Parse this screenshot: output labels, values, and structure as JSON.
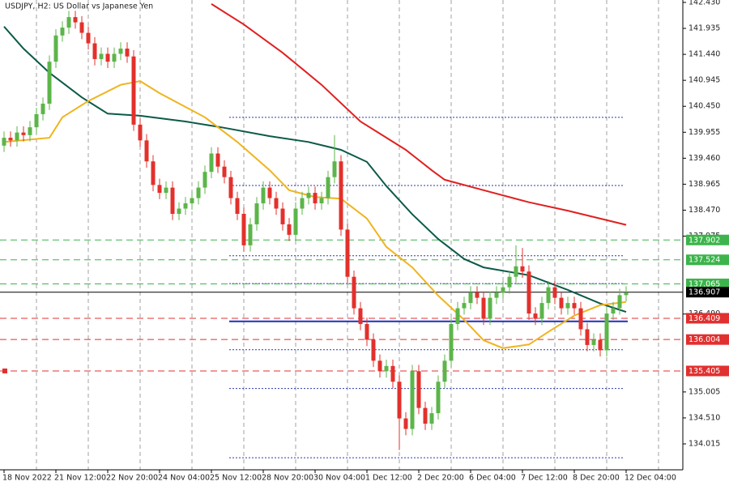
{
  "chart_data": {
    "type": "candlestick",
    "title": "USDJPY, H2:  US Dollar vs Japanese Yen",
    "xlim": [
      -0.625,
      104.75
    ],
    "ylim": [
      133.521,
      142.476
    ],
    "x_labels": [
      {
        "index": 0,
        "label": "18 Nov 2022"
      },
      {
        "index": 8,
        "label": "21 Nov 12:00"
      },
      {
        "index": 16,
        "label": "22 Nov 20:00"
      },
      {
        "index": 24,
        "label": "24 Nov 04:00"
      },
      {
        "index": 32,
        "label": "25 Nov 12:00"
      },
      {
        "index": 40,
        "label": "28 Nov 20:00"
      },
      {
        "index": 48,
        "label": "30 Nov 04:00"
      },
      {
        "index": 56,
        "label": "1 Dec 12:00"
      },
      {
        "index": 64,
        "label": "2 Dec 20:00"
      },
      {
        "index": 72,
        "label": "6 Dec 04:00"
      },
      {
        "index": 80,
        "label": "7 Dec 12:00"
      },
      {
        "index": 88,
        "label": "8 Dec 20:00"
      },
      {
        "index": 96,
        "label": "12 Dec 04:00"
      }
    ],
    "x_grid": [
      5,
      13,
      21,
      29,
      37,
      45,
      53,
      61,
      69,
      77,
      85,
      93,
      101
    ],
    "grid": true,
    "yticks": [
      {
        "value": 142.43,
        "label": "142.430"
      },
      141.935,
      {
        "value": 141.44,
        "label": "141.440"
      },
      140.945,
      {
        "value": 140.45,
        "label": "140.450"
      },
      139.955,
      {
        "value": 139.46,
        "label": "139.460"
      },
      138.965,
      {
        "value": 138.47,
        "label": "138.470"
      },
      137.975,
      {
        "value": 136.49,
        "label": "136.490"
      },
      135.005,
      {
        "value": 134.51,
        "label": "134.510"
      },
      134.015
    ],
    "up_color": "#5cb54a",
    "down_color": "#e3302c",
    "open": [
      139.7,
      139.85,
      139.8,
      139.95,
      139.9,
      140.05,
      140.3,
      140.5,
      141.3,
      141.8,
      141.95,
      142.15,
      142.05,
      141.85,
      141.65,
      141.35,
      141.45,
      141.3,
      141.45,
      141.55,
      141.4,
      140.1,
      139.8,
      139.4,
      138.95,
      138.8,
      138.9,
      138.4,
      138.5,
      138.6,
      138.7,
      138.9,
      139.2,
      139.55,
      139.3,
      139.1,
      138.7,
      138.4,
      137.8,
      138.2,
      138.6,
      138.9,
      138.7,
      138.5,
      138.2,
      138.0,
      138.5,
      138.7,
      138.8,
      138.6,
      138.7,
      139.1,
      139.4,
      138.1,
      137.2,
      136.6,
      136.3,
      136.0,
      135.6,
      135.4,
      135.5,
      135.2,
      134.5,
      134.3,
      135.4,
      134.7,
      134.4,
      134.6,
      135.2,
      135.6,
      136.3,
      136.6,
      136.7,
      136.9,
      136.8,
      136.4,
      136.8,
      136.9,
      137.0,
      137.2,
      137.4,
      137.3,
      136.5,
      136.4,
      136.7,
      137.0,
      136.8,
      136.6,
      136.7,
      136.6,
      136.2,
      135.9,
      136.0,
      135.8,
      136.5,
      136.6,
      136.85
    ],
    "high": [
      139.97,
      139.97,
      140.07,
      140.07,
      140.17,
      140.42,
      140.62,
      141.42,
      141.92,
      142.07,
      142.27,
      142.27,
      142.17,
      141.97,
      141.77,
      141.57,
      141.57,
      141.57,
      141.67,
      141.67,
      141.52,
      140.22,
      139.92,
      139.52,
      139.07,
      139.02,
      139.02,
      138.62,
      138.72,
      138.82,
      139.02,
      139.32,
      139.67,
      139.67,
      139.42,
      139.22,
      138.82,
      138.52,
      138.32,
      138.72,
      139.02,
      139.02,
      138.82,
      138.62,
      138.32,
      138.62,
      138.82,
      138.92,
      138.92,
      138.82,
      139.22,
      139.9,
      139.52,
      138.22,
      137.32,
      136.72,
      136.42,
      136.12,
      135.72,
      135.62,
      135.62,
      135.32,
      134.62,
      135.52,
      135.52,
      134.82,
      134.72,
      135.32,
      135.72,
      136.42,
      136.72,
      136.82,
      137.02,
      137.02,
      136.92,
      136.92,
      137.02,
      137.12,
      137.32,
      137.8,
      137.75,
      137.42,
      136.62,
      136.82,
      137.12,
      137.12,
      136.92,
      136.82,
      136.82,
      136.72,
      136.32,
      136.12,
      136.12,
      136.62,
      136.72,
      136.97,
      137.02
    ],
    "low": [
      139.58,
      139.68,
      139.68,
      139.78,
      139.78,
      139.93,
      140.18,
      140.38,
      141.18,
      141.68,
      141.83,
      141.93,
      141.73,
      141.53,
      141.23,
      141.23,
      141.18,
      141.18,
      141.33,
      141.28,
      139.98,
      139.68,
      139.28,
      138.83,
      138.68,
      138.68,
      138.28,
      138.28,
      138.38,
      138.48,
      138.58,
      138.78,
      139.08,
      139.18,
      138.98,
      138.58,
      138.28,
      137.68,
      137.68,
      138.08,
      138.48,
      138.58,
      138.38,
      138.08,
      137.88,
      137.88,
      138.38,
      138.58,
      138.48,
      138.48,
      138.58,
      138.98,
      137.98,
      137.08,
      136.48,
      136.18,
      135.88,
      135.48,
      135.28,
      135.28,
      135.08,
      133.9,
      134.18,
      134.18,
      134.58,
      134.28,
      134.28,
      134.48,
      135.08,
      135.48,
      136.18,
      136.48,
      136.58,
      136.68,
      136.28,
      136.28,
      136.68,
      136.78,
      136.88,
      137.08,
      137.18,
      136.38,
      136.28,
      136.28,
      136.58,
      136.68,
      136.48,
      136.48,
      136.48,
      136.08,
      135.78,
      135.78,
      135.68,
      135.68,
      136.38,
      136.48,
      136.73
    ],
    "close": [
      139.85,
      139.8,
      139.95,
      139.9,
      140.05,
      140.3,
      140.5,
      141.3,
      141.8,
      141.95,
      142.15,
      142.05,
      141.85,
      141.65,
      141.35,
      141.45,
      141.3,
      141.45,
      141.55,
      141.4,
      140.1,
      139.8,
      139.4,
      138.95,
      138.8,
      138.9,
      138.4,
      138.5,
      138.6,
      138.7,
      138.9,
      139.2,
      139.55,
      139.3,
      139.1,
      138.7,
      138.4,
      137.8,
      138.2,
      138.6,
      138.9,
      138.7,
      138.5,
      138.2,
      138.0,
      138.5,
      138.7,
      138.8,
      138.6,
      138.7,
      139.1,
      139.4,
      138.1,
      137.2,
      136.6,
      136.3,
      136.0,
      135.6,
      135.4,
      135.5,
      135.2,
      134.5,
      134.3,
      135.4,
      134.7,
      134.4,
      134.6,
      135.2,
      135.6,
      136.3,
      136.6,
      136.7,
      136.9,
      136.8,
      136.4,
      136.8,
      136.9,
      137.0,
      137.2,
      137.4,
      137.3,
      136.5,
      136.4,
      136.7,
      137.0,
      136.8,
      136.6,
      136.7,
      136.6,
      136.2,
      135.9,
      136.0,
      135.8,
      136.5,
      136.6,
      136.85,
      136.9
    ],
    "moving_averages": [
      {
        "color": "#e02020",
        "x": [
          32,
          37,
          43,
          49,
          55,
          62,
          66,
          68,
          74,
          81,
          87,
          96
        ],
        "values": [
          142.4,
          142.01,
          141.47,
          140.86,
          140.16,
          139.62,
          139.23,
          139.05,
          138.85,
          138.62,
          138.46,
          138.19
        ]
      },
      {
        "color": "#0c5a48",
        "x": [
          0,
          3,
          7,
          12,
          16,
          21,
          28,
          34,
          41,
          47,
          52,
          56,
          59,
          63,
          67,
          71,
          74,
          81,
          87,
          92,
          96
        ],
        "values": [
          141.97,
          141.55,
          141.09,
          140.62,
          140.31,
          140.27,
          140.16,
          140.04,
          139.88,
          139.77,
          139.62,
          139.39,
          138.93,
          138.39,
          137.92,
          137.54,
          137.38,
          137.23,
          136.95,
          136.69,
          136.53
        ]
      },
      {
        "color": "#f0b41e",
        "x": [
          0,
          7,
          9,
          13,
          18,
          21,
          24,
          31,
          36,
          41,
          44,
          48,
          52,
          56,
          59,
          63,
          67,
          71,
          74,
          77,
          81,
          84,
          88,
          92,
          96
        ],
        "values": [
          139.77,
          139.85,
          140.24,
          140.55,
          140.86,
          140.93,
          140.7,
          140.24,
          139.77,
          139.23,
          138.85,
          138.72,
          138.69,
          138.31,
          137.77,
          137.38,
          136.84,
          136.38,
          135.99,
          135.84,
          135.91,
          136.15,
          136.46,
          136.66,
          136.72
        ]
      }
    ],
    "levels": [
      {
        "value": 137.902,
        "color": "#3cb44b",
        "style": "dashed",
        "boxed": true
      },
      {
        "value": 137.524,
        "color": "#3cb44b",
        "style": "dashed",
        "boxed": true
      },
      {
        "value": 137.065,
        "color": "#3cb44b",
        "style": "dashed",
        "boxed": true
      },
      {
        "value": 136.907,
        "color": "#000000",
        "style": "solid",
        "boxed": true
      },
      {
        "value": 136.409,
        "color": "#e03030",
        "style": "dashed",
        "boxed": true
      },
      {
        "value": 136.004,
        "color": "#e03030",
        "style": "dashed",
        "boxed": true
      },
      {
        "value": 135.405,
        "color": "#e03030",
        "style": "dashed",
        "boxed": true
      }
    ],
    "segments": [
      {
        "value": 136.35,
        "from": 34.75,
        "to": 96.25,
        "color": "#1f2fbf",
        "style": "solid"
      },
      {
        "value": 140.24,
        "from": 34.75,
        "to": 95.6,
        "color": "#2a3aa8",
        "style": "dotted"
      },
      {
        "value": 138.94,
        "from": 34.75,
        "to": 95.6,
        "color": "#2a3aa8",
        "style": "dotted"
      },
      {
        "value": 137.6,
        "from": 34.75,
        "to": 95.6,
        "color": "#2a3aa8",
        "style": "dotted"
      },
      {
        "value": 137.07,
        "from": 34.75,
        "to": 95.6,
        "color": "#2a3aa8",
        "style": "dotted"
      },
      {
        "value": 135.81,
        "from": 34.75,
        "to": 95.6,
        "color": "#2a3aa8",
        "style": "dotted"
      },
      {
        "value": 135.07,
        "from": 34.75,
        "to": 95.6,
        "color": "#2a3aa8",
        "style": "dotted"
      },
      {
        "value": 133.75,
        "from": 34.75,
        "to": 95.6,
        "color": "#2a3aa8",
        "style": "dotted"
      }
    ]
  }
}
